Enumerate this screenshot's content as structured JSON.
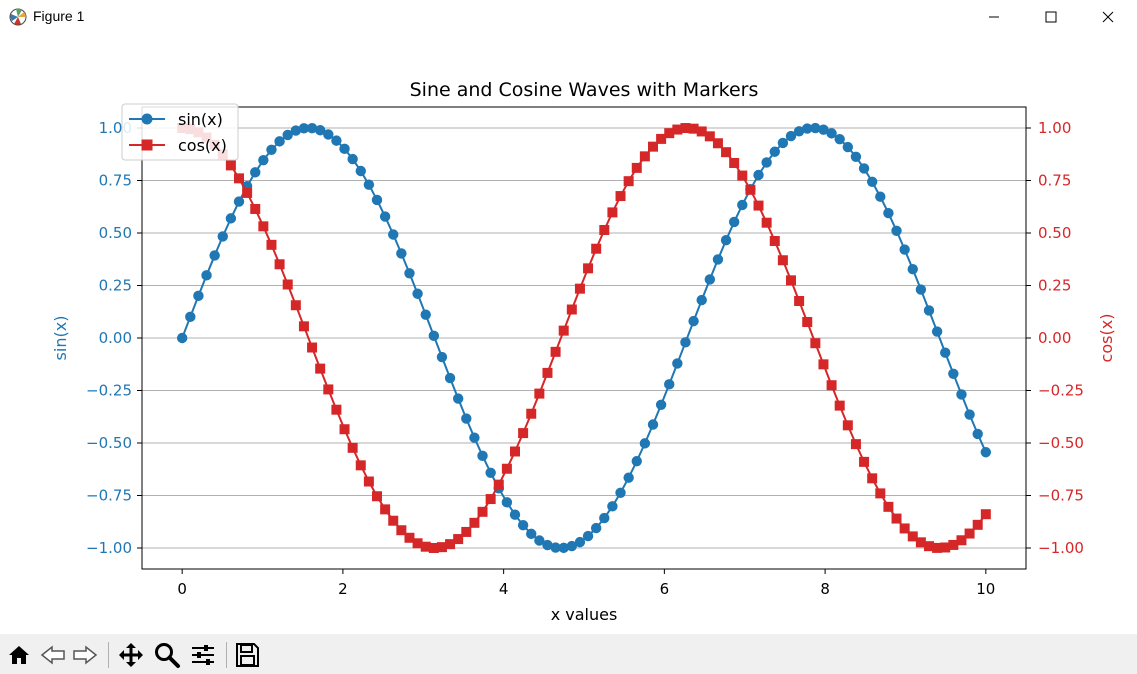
{
  "window": {
    "title": "Figure 1",
    "app_icon": "matplotlib-icon",
    "controls": [
      "minimize-icon",
      "maximize-icon",
      "close-icon"
    ]
  },
  "toolbar": {
    "buttons": [
      "home-icon",
      "back-arrow-icon",
      "forward-arrow-icon",
      "pan-icon",
      "zoom-icon",
      "configure-subplots-icon",
      "save-icon"
    ]
  },
  "chart_data": {
    "type": "line",
    "title": "Sine and Cosine Waves with Markers",
    "xlabel": "x values",
    "ylabel_left": "sin(x)",
    "ylabel_right": "cos(x)",
    "xlim": [
      -0.5,
      10.5
    ],
    "ylim": [
      -1.1,
      1.1
    ],
    "x_ticks": [
      0,
      2,
      4,
      6,
      8,
      10
    ],
    "x_tick_labels": [
      "0",
      "2",
      "4",
      "6",
      "8",
      "10"
    ],
    "y_ticks": [
      1.0,
      0.75,
      0.5,
      0.25,
      0.0,
      -0.25,
      -0.5,
      -0.75,
      -1.0
    ],
    "y_tick_labels": [
      "1.00",
      "0.75",
      "0.50",
      "0.25",
      "0.00",
      "−0.25",
      "−0.50",
      "−0.75",
      "−1.00"
    ],
    "grid": "horizontal",
    "legend_position": "upper-left",
    "x_range": {
      "start": 0,
      "stop": 10,
      "num_points": 100
    },
    "series": [
      {
        "name": "sin(x)",
        "function": "sin",
        "color": "#1f77b4",
        "marker": "circle",
        "axis": "left"
      },
      {
        "name": "cos(x)",
        "function": "cos",
        "color": "#d62728",
        "marker": "square",
        "axis": "right"
      }
    ]
  }
}
